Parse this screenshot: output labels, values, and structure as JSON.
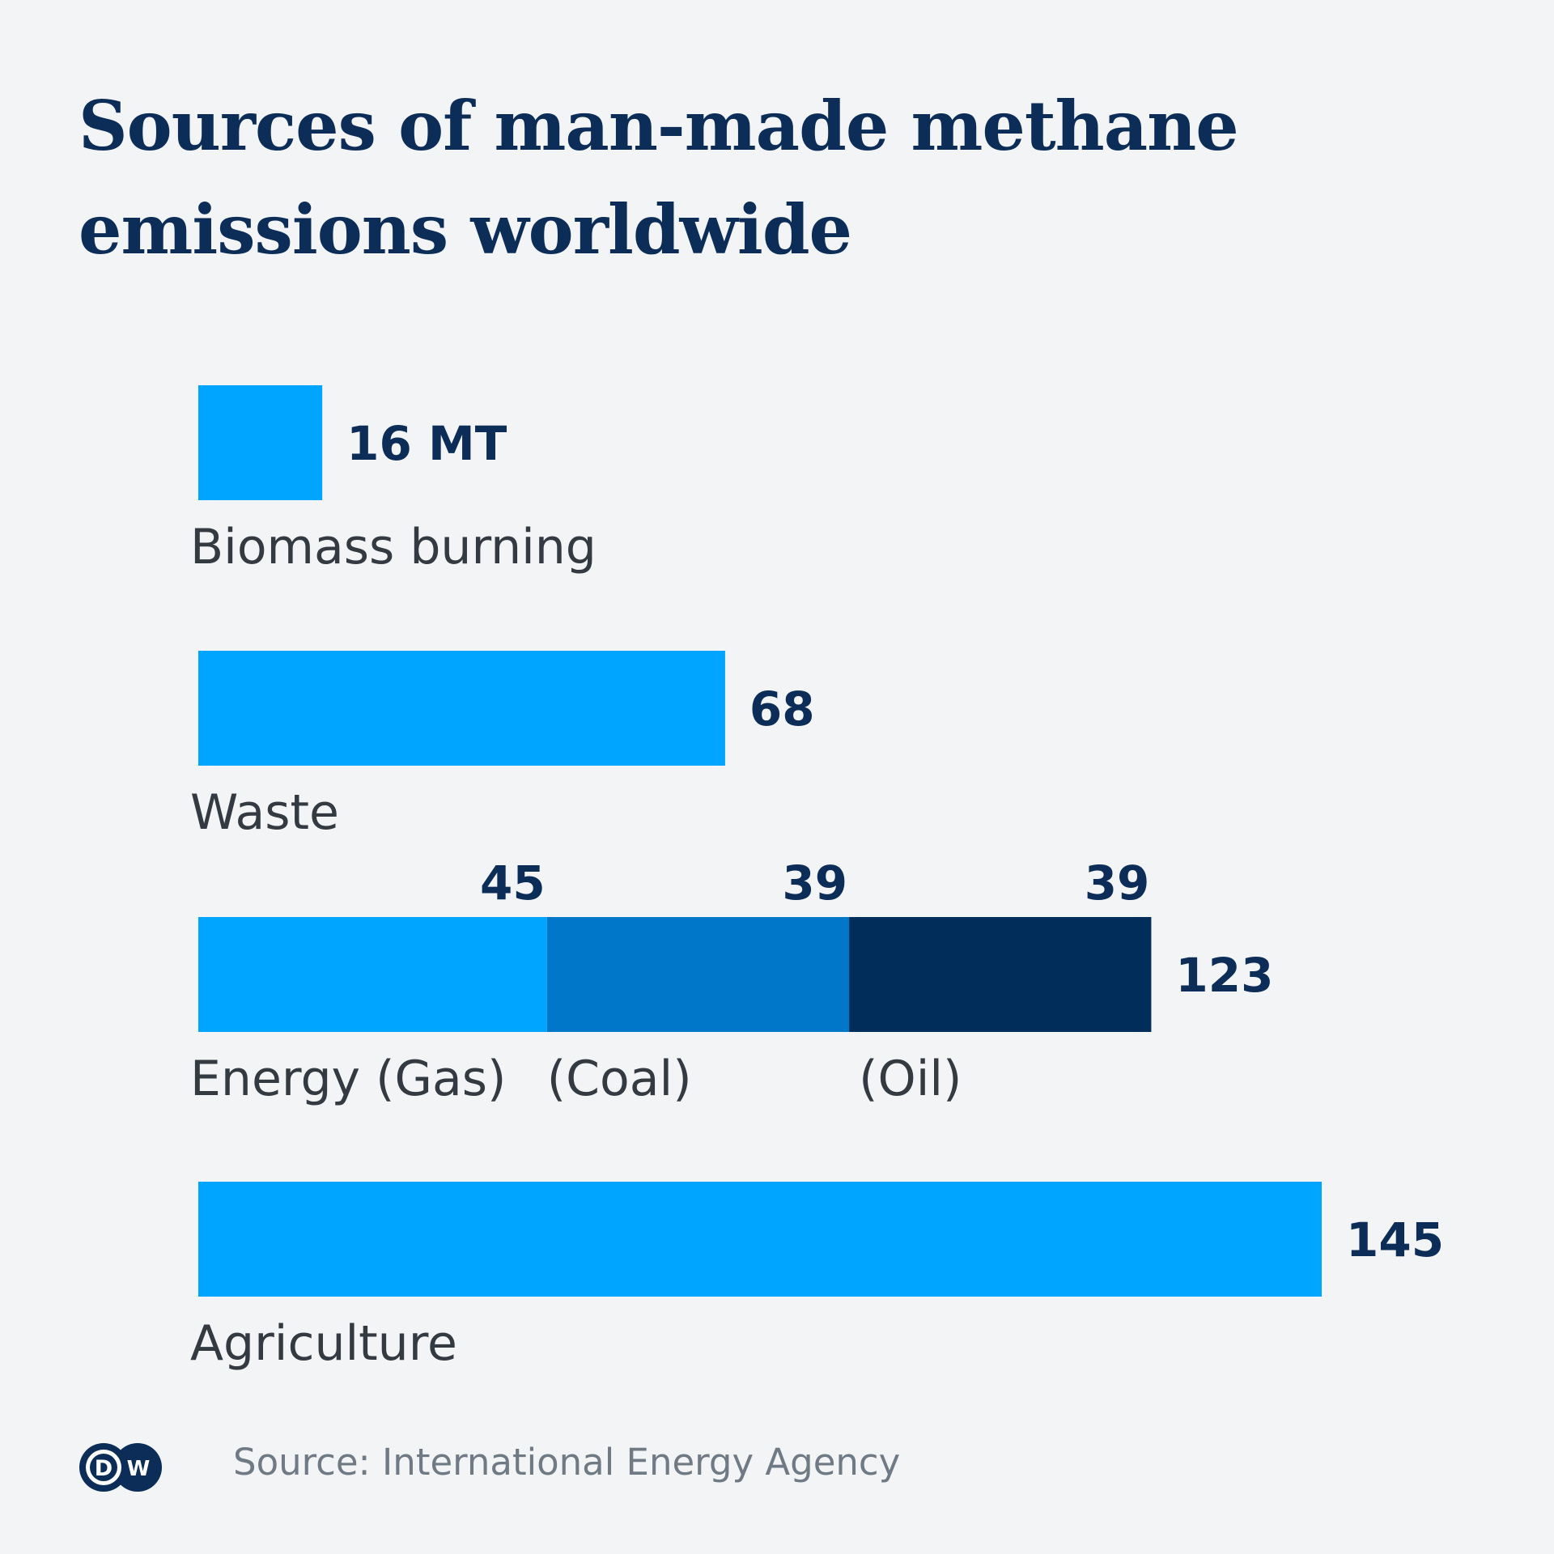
{
  "title": "Sources of man-made methane emissions worldwide",
  "source": "Source: International Energy Agency",
  "logo_text": "DW",
  "colors": {
    "primary": "#00a5ff",
    "coal": "#0077c8",
    "oil": "#002d5a",
    "text": "#0c2d57",
    "background": "#f2f4f6"
  },
  "chart_data": {
    "type": "bar",
    "orientation": "horizontal",
    "stacked": true,
    "unit": "MT",
    "grid": false,
    "categories": [
      "Biomass burning",
      "Waste",
      "Energy",
      "Agriculture"
    ],
    "bars": [
      {
        "label": "Biomass burning",
        "total_label": "16 MT",
        "segments": [
          {
            "label": "",
            "value": 16,
            "color": "#00a5ff"
          }
        ]
      },
      {
        "label": "Waste",
        "total_label": "68",
        "segments": [
          {
            "label": "",
            "value": 68,
            "color": "#00a5ff"
          }
        ]
      },
      {
        "label": "Energy (Gas)",
        "total_label": "123",
        "segments": [
          {
            "label": "",
            "value": 45,
            "value_label": "45",
            "color": "#00a5ff"
          },
          {
            "label": "(Coal)",
            "value": 39,
            "value_label": "39",
            "color": "#0077c8"
          },
          {
            "label": "(Oil)",
            "value": 39,
            "value_label": "39",
            "color": "#002d5a"
          }
        ]
      },
      {
        "label": "Agriculture",
        "total_label": "145",
        "segments": [
          {
            "label": "",
            "value": 145,
            "color": "#00a5ff"
          }
        ]
      }
    ]
  }
}
